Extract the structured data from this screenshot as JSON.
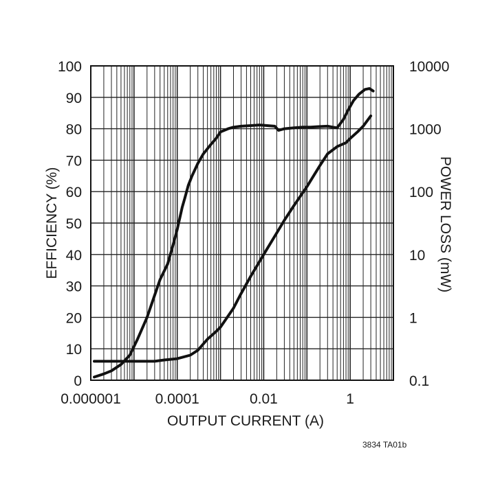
{
  "chart_data": {
    "type": "line",
    "xlabel": "OUTPUT CURRENT (A)",
    "ylabel": "EFFICIENCY (%)",
    "y2label": "POWER LOSS (mW)",
    "xscale": "log",
    "xlim": [
      1e-06,
      10
    ],
    "ylim": [
      0,
      100
    ],
    "y2scale": "log",
    "y2lim": [
      0.1,
      10000
    ],
    "x_tick_labels": [
      "0.000001",
      "0.0001",
      "0.01",
      "1"
    ],
    "y_tick_labels": [
      "0",
      "10",
      "20",
      "30",
      "40",
      "50",
      "60",
      "70",
      "80",
      "90",
      "100"
    ],
    "y2_tick_labels": [
      "0.1",
      "1",
      "10",
      "100",
      "1000",
      "10000"
    ],
    "grid": true,
    "note": "3834 TA01b",
    "series": [
      {
        "axis": "left",
        "x": [
          1.2e-06,
          2e-06,
          3e-06,
          5e-06,
          8e-06,
          1.2e-05,
          2e-05,
          3e-05,
          4e-05,
          6e-05,
          8e-05,
          0.0001,
          0.00013,
          0.00015,
          0.00018,
          0.00022,
          0.0003,
          0.0004,
          0.0006,
          0.0008,
          0.001,
          0.0015,
          0.002,
          0.003,
          0.005,
          0.008,
          0.012,
          0.018,
          0.022,
          0.03,
          0.05,
          0.08,
          0.12,
          0.2,
          0.3,
          0.4,
          0.5,
          0.7,
          0.9,
          1.2,
          1.6,
          2.2,
          2.8,
          3.4
        ],
        "y": [
          1,
          2,
          3,
          5,
          8,
          13,
          20,
          27,
          32,
          37,
          43,
          48,
          55,
          58,
          62,
          65,
          69,
          72,
          75,
          77,
          79,
          80,
          80.5,
          80.8,
          81,
          81.2,
          81,
          80.8,
          79.5,
          80,
          80.3,
          80.5,
          80.5,
          80.7,
          80.8,
          80.5,
          80.3,
          83,
          86,
          89,
          91,
          92.5,
          92.8,
          92
        ]
      },
      {
        "axis": "right",
        "x": [
          1.2e-06,
          2e-06,
          5e-06,
          1e-05,
          2e-05,
          3e-05,
          5e-05,
          0.0001,
          0.0002,
          0.0003,
          0.0005,
          0.0008,
          0.001,
          0.002,
          0.003,
          0.005,
          0.01,
          0.02,
          0.03,
          0.05,
          0.1,
          0.2,
          0.3,
          0.5,
          0.8,
          1.0,
          1.5,
          2.0,
          3.0
        ],
        "y": [
          0.2,
          0.2,
          0.2,
          0.2,
          0.2,
          0.2,
          0.21,
          0.22,
          0.25,
          0.3,
          0.45,
          0.6,
          0.7,
          1.4,
          2.4,
          4.5,
          10,
          22,
          35,
          60,
          120,
          260,
          400,
          520,
          600,
          700,
          900,
          1100,
          1600
        ]
      }
    ]
  }
}
